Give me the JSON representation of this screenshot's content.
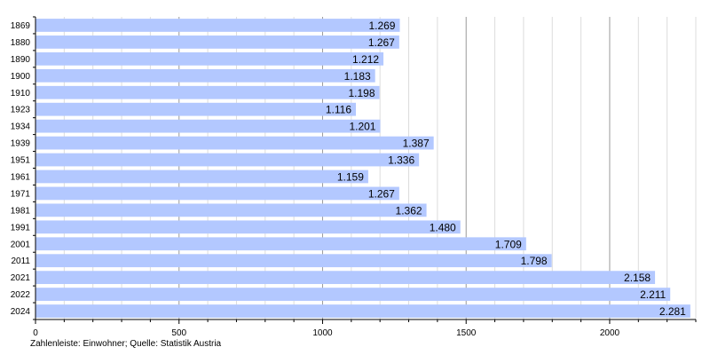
{
  "chart_data": {
    "type": "bar",
    "orientation": "horizontal",
    "categories": [
      "1869",
      "1880",
      "1890",
      "1900",
      "1910",
      "1923",
      "1934",
      "1939",
      "1951",
      "1961",
      "1971",
      "1981",
      "1991",
      "2001",
      "2011",
      "2021",
      "2022",
      "2024"
    ],
    "values": [
      1269,
      1267,
      1212,
      1183,
      1198,
      1116,
      1201,
      1387,
      1336,
      1159,
      1267,
      1362,
      1480,
      1709,
      1798,
      2158,
      2211,
      2281
    ],
    "value_labels": [
      "1.269",
      "1.267",
      "1.212",
      "1.183",
      "1.198",
      "1.116",
      "1.201",
      "1.387",
      "1.336",
      "1.159",
      "1.267",
      "1.362",
      "1.480",
      "1.709",
      "1.798",
      "2.158",
      "2.211",
      "2.281"
    ],
    "xlim": [
      0,
      2300
    ],
    "x_ticks": [
      0,
      500,
      1000,
      1500,
      2000
    ],
    "x_tick_labels": [
      "0",
      "500",
      "1000",
      "1500",
      "2000"
    ],
    "grid": true,
    "bar_color": "#b3c8ff",
    "footnote": "Zahlenleiste: Einwohner; Quelle: Statistik Austria"
  }
}
